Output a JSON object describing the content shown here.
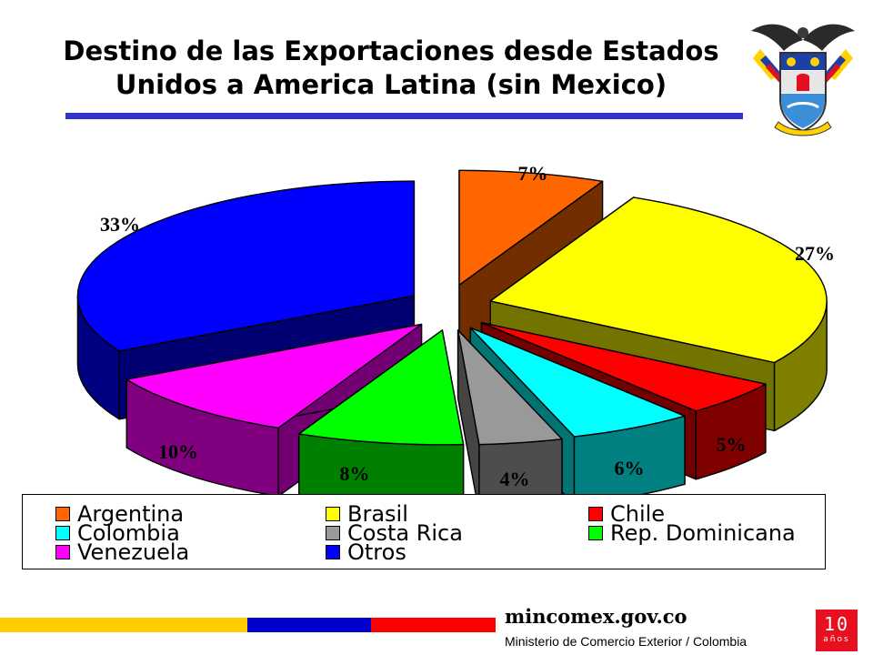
{
  "slide": {
    "title": "Destino de las Exportaciones desde Estados Unidos a America Latina (sin Mexico)",
    "title_rule_color": "#3333cc"
  },
  "chart_data": {
    "type": "pie",
    "title": "",
    "categories": [
      "Argentina",
      "Brasil",
      "Chile",
      "Colombia",
      "Costa Rica",
      "Rep. Dominicana",
      "Venezuela",
      "Otros"
    ],
    "values": [
      7,
      27,
      5,
      6,
      4,
      8,
      10,
      33
    ],
    "data_labels": [
      "7%",
      "27%",
      "5%",
      "6%",
      "4%",
      "8%",
      "10%",
      "33%"
    ],
    "colors": [
      "#ff6600",
      "#ffff00",
      "#ff0000",
      "#00ffff",
      "#999999",
      "#00ff00",
      "#ff00ff",
      "#0000ff"
    ],
    "style": "3d-exploded",
    "legend_position": "bottom",
    "legend_columns": 3
  },
  "footer": {
    "website": "mincomex.gov.co",
    "ministry": "Ministerio de Comercio Exterior / Colombia",
    "badge_number": "10",
    "badge_text": "años",
    "bar_colors": [
      "#ffcc00",
      "#0000cc",
      "#ff0000"
    ]
  },
  "crest": {
    "icon": "coat-of-arms-icon"
  }
}
